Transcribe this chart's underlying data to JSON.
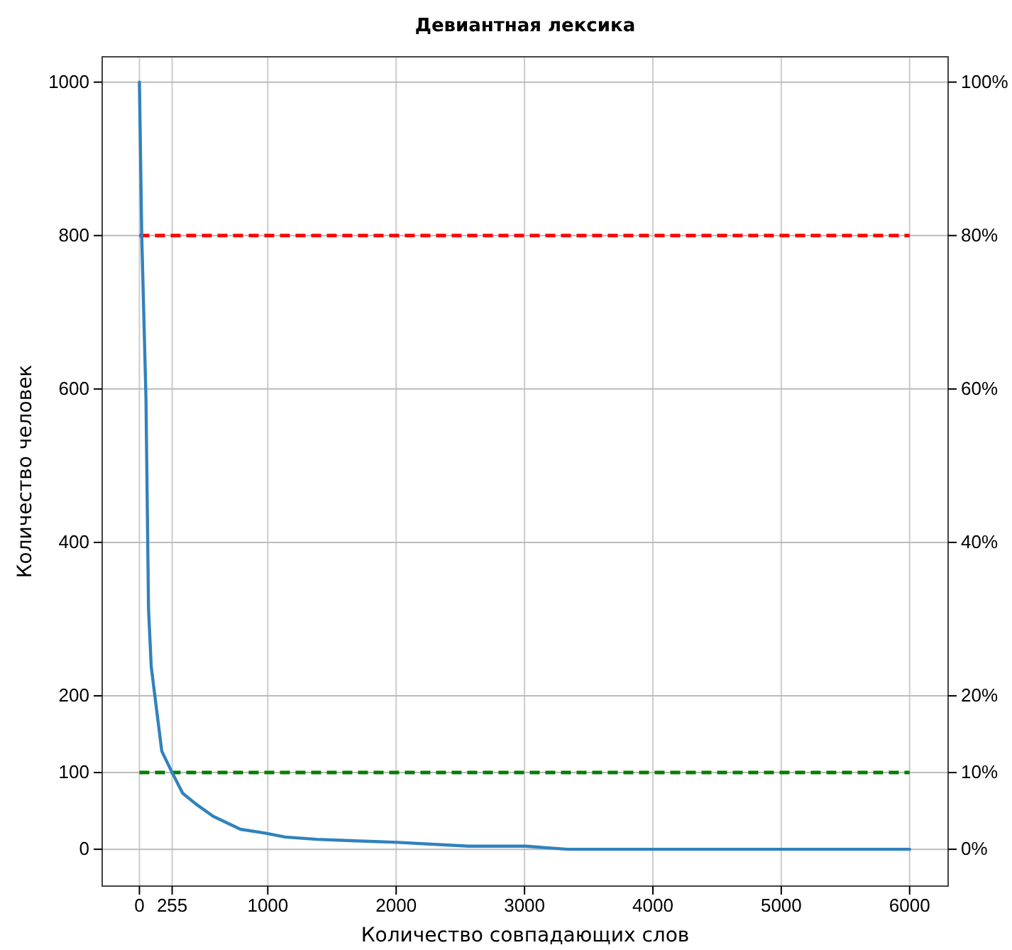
{
  "chart_data": {
    "type": "line",
    "title": "Девиантная лексика",
    "xlabel": "Количество совпадающих слов",
    "ylabel": "Количество человек",
    "xlim": [
      -290,
      6300
    ],
    "xticks": [
      0,
      255,
      1000,
      2000,
      3000,
      4000,
      5000,
      6000
    ],
    "ylim": [
      -48,
      1033
    ],
    "yticks": [
      0,
      100,
      200,
      400,
      600,
      800,
      1000
    ],
    "y2lim": [
      -4.8,
      103.3
    ],
    "y2ticks": [
      {
        "value": 0,
        "label": "0%"
      },
      {
        "value": 10,
        "label": "10%"
      },
      {
        "value": 20,
        "label": "20%"
      },
      {
        "value": 40,
        "label": "40%"
      },
      {
        "value": 60,
        "label": "60%"
      },
      {
        "value": 80,
        "label": "80%"
      },
      {
        "value": 100,
        "label": "100%"
      }
    ],
    "grid": true,
    "line_style": "solid",
    "series": [
      {
        "color": "#3182bd",
        "x": [
          0,
          18,
          51,
          71,
          92,
          174,
          255,
          337,
          440,
          575,
          788,
          980,
          1135,
          1381,
          1680,
          2011,
          2564,
          3006,
          3337,
          4995,
          6000
        ],
        "values": [
          1000,
          800,
          588,
          313,
          238,
          128,
          100,
          73,
          59,
          43,
          26,
          21,
          16,
          13,
          11,
          9,
          4,
          4,
          0,
          0,
          0
        ]
      }
    ],
    "ref_lines": [
      {
        "axis": "y",
        "value": 800,
        "color": "#ff0000",
        "line_style": "dashed"
      },
      {
        "axis": "y",
        "value": 100,
        "color": "#008000",
        "line_style": "dashed"
      }
    ]
  }
}
